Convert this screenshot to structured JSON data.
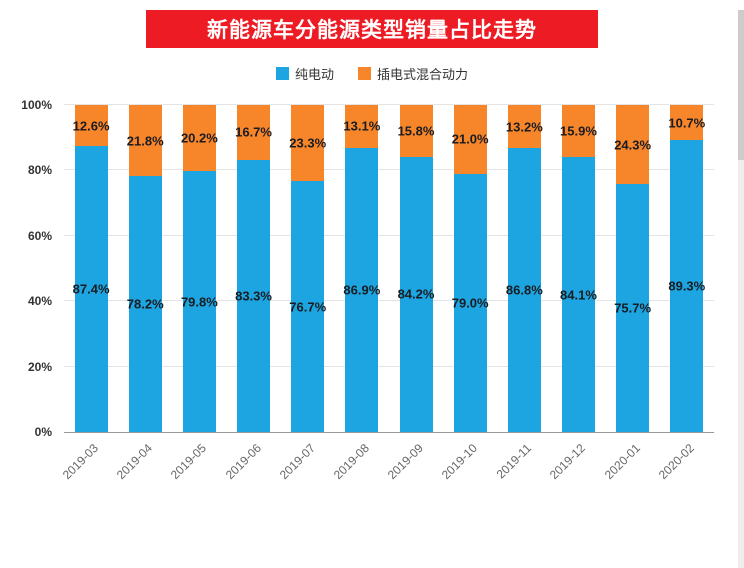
{
  "header": {
    "title": "新能源车分能源类型销量占比走势",
    "banner_color": "#ed1c24",
    "text_color": "#ffffff"
  },
  "legend": [
    {
      "label": "纯电动",
      "color": "#1ca5e0"
    },
    {
      "label": "插电式混合动力",
      "color": "#f7862b"
    }
  ],
  "chart_data": {
    "type": "bar",
    "stacked": true,
    "percent": true,
    "title": "新能源车分能源类型销量占比走势",
    "categories": [
      "2019-03",
      "2019-04",
      "2019-05",
      "2019-06",
      "2019-07",
      "2019-08",
      "2019-09",
      "2019-10",
      "2019-11",
      "2019-12",
      "2020-01",
      "2020-02"
    ],
    "series": [
      {
        "name": "纯电动",
        "color": "#1ca5e0",
        "values": [
          87.4,
          78.2,
          79.8,
          83.3,
          76.7,
          86.9,
          84.2,
          79.0,
          86.8,
          84.1,
          75.7,
          89.3
        ]
      },
      {
        "name": "插电式混合动力",
        "color": "#f7862b",
        "values": [
          12.6,
          21.8,
          20.2,
          16.7,
          23.3,
          13.1,
          15.8,
          21.0,
          13.2,
          15.9,
          24.3,
          10.7
        ]
      }
    ],
    "y_ticks": [
      "0%",
      "20%",
      "40%",
      "60%",
      "80%",
      "100%"
    ],
    "ylim": [
      0,
      100
    ],
    "grid": true,
    "legend_position": "top",
    "value_label_suffix": "%",
    "xlabel": "",
    "ylabel": ""
  }
}
